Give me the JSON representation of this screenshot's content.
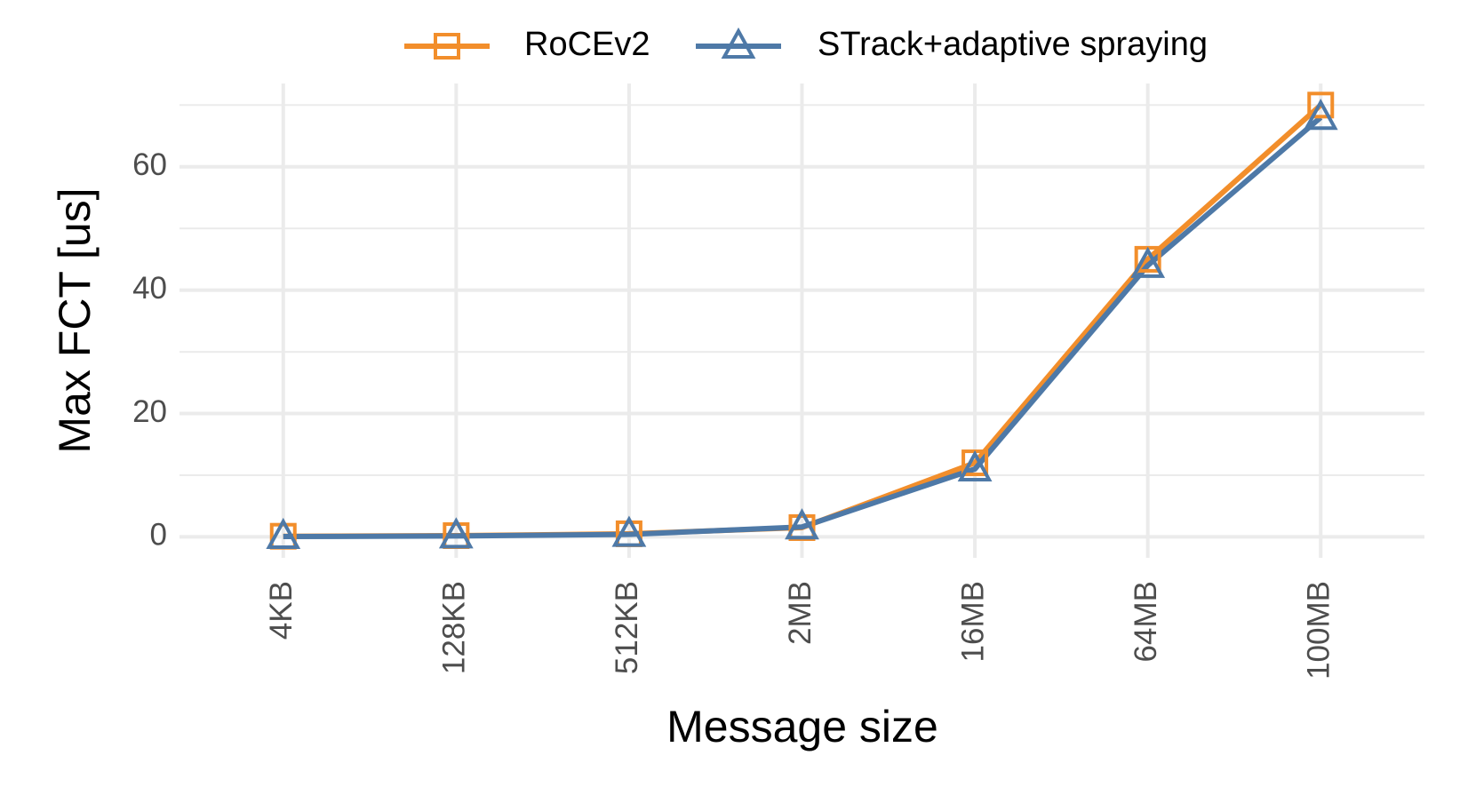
{
  "chart_data": {
    "type": "line",
    "x_label": "Message size",
    "y_label": "Max FCT [us]",
    "categories": [
      "4KB",
      "128KB",
      "512KB",
      "2MB",
      "16MB",
      "64MB",
      "100MB"
    ],
    "series": [
      {
        "name": "RoCEv2",
        "color": "#f28e2b",
        "marker": "square",
        "values": [
          0.1,
          0.2,
          0.5,
          1.5,
          12,
          45,
          70
        ]
      },
      {
        "name": "STrack+adaptive spraying",
        "color": "#4e79a7",
        "marker": "triangle",
        "values": [
          0.05,
          0.15,
          0.4,
          1.6,
          11,
          44,
          68
        ]
      }
    ],
    "ylim": [
      -3.4,
      73.5
    ],
    "yticks": [
      0,
      20,
      40,
      60
    ],
    "grid": true,
    "minor_grid": true,
    "legend": "top"
  }
}
